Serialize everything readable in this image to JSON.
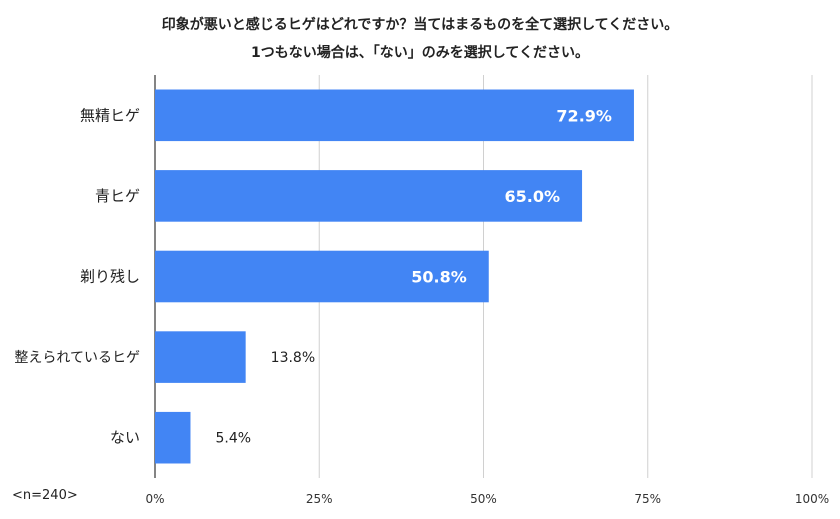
{
  "chart_data": {
    "type": "bar",
    "orientation": "horizontal",
    "title_lines": [
      "印象が悪いと感じるヒゲはどれですか？当てはまるものを全て選択してください。",
      "1つもない場合は、「ない」のみを選択してください。"
    ],
    "categories": [
      "無精ヒゲ",
      "青ヒゲ",
      "剃り残し",
      "整えられているヒゲ",
      "ない"
    ],
    "values": [
      72.9,
      65.0,
      50.8,
      13.8,
      5.4
    ],
    "value_labels": [
      "72.9%",
      "65.0%",
      "50.8%",
      "13.8%",
      "5.4%"
    ],
    "xlim": [
      0,
      100
    ],
    "xticks": [
      0,
      25,
      50,
      75,
      100
    ],
    "xtick_labels": [
      "0%",
      "25%",
      "50%",
      "75%",
      "100%"
    ],
    "grid": true,
    "bar_color": "#4285f4",
    "note": "<n=240>"
  }
}
